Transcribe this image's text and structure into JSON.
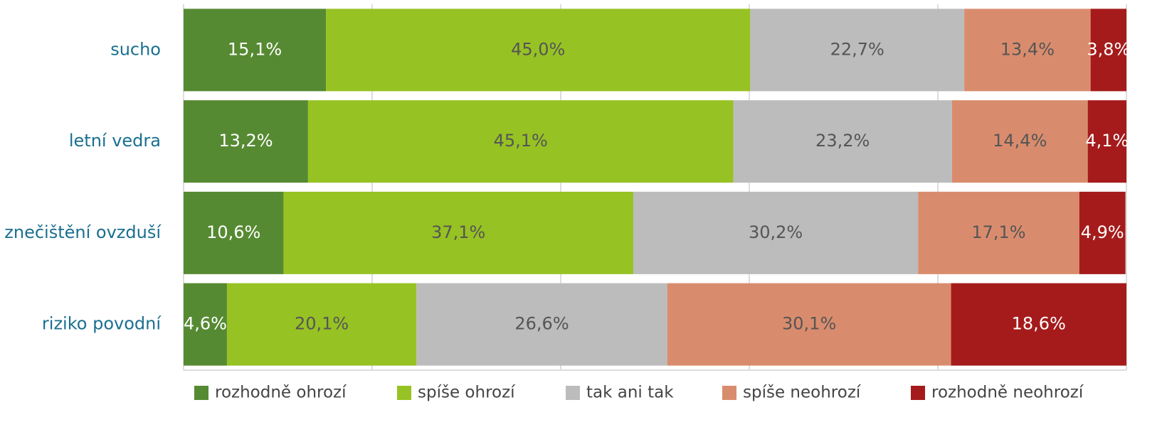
{
  "chart_data": {
    "type": "bar",
    "orientation": "horizontal",
    "stacked": true,
    "categories": [
      "sucho",
      "letní vedra",
      "znečištění ovzduší",
      "riziko povodní"
    ],
    "xlim": [
      0,
      100
    ],
    "xticks": [
      0,
      20,
      40,
      60,
      80,
      100
    ],
    "grid": true,
    "legend": "bottom",
    "series": [
      {
        "name": "rozhodně ohrozí",
        "color": "#568a32",
        "values": [
          15.1,
          13.2,
          10.6,
          4.6
        ],
        "value_labels": [
          "15,1%",
          "13,2%",
          "10,6%",
          "4,6%"
        ]
      },
      {
        "name": "spíše ohrozí",
        "color": "#97c223",
        "values": [
          45.0,
          45.1,
          37.1,
          20.1
        ],
        "value_labels": [
          "45,0%",
          "45,1%",
          "37,1%",
          "20,1%"
        ]
      },
      {
        "name": "tak ani tak",
        "color": "#bcbcbc",
        "values": [
          22.7,
          23.2,
          30.2,
          26.6
        ],
        "value_labels": [
          "22,7%",
          "23,2%",
          "30,2%",
          "26,6%"
        ]
      },
      {
        "name": "spíše neohrozí",
        "color": "#d98c6d",
        "values": [
          13.4,
          14.4,
          17.1,
          30.1
        ],
        "value_labels": [
          "13,4%",
          "14,4%",
          "17,1%",
          "30,1%"
        ]
      },
      {
        "name": "rozhodně neohrozí",
        "color": "#a51b1b",
        "values": [
          3.8,
          4.1,
          4.9,
          18.6
        ],
        "value_labels": [
          "3,8%",
          "4,1%",
          "4,9%",
          "18,6%"
        ]
      }
    ]
  }
}
